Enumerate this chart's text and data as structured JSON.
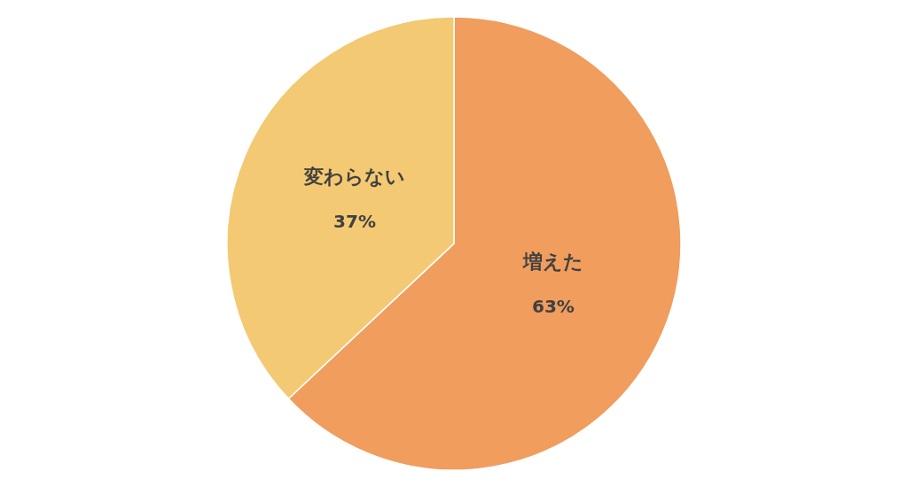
{
  "chart_data": {
    "type": "pie",
    "categories": [
      "増えた",
      "変わらない"
    ],
    "values": [
      63,
      37
    ],
    "colors": [
      "#f09d5e",
      "#f4c973"
    ],
    "value_labels": [
      "63%",
      "37%"
    ]
  }
}
